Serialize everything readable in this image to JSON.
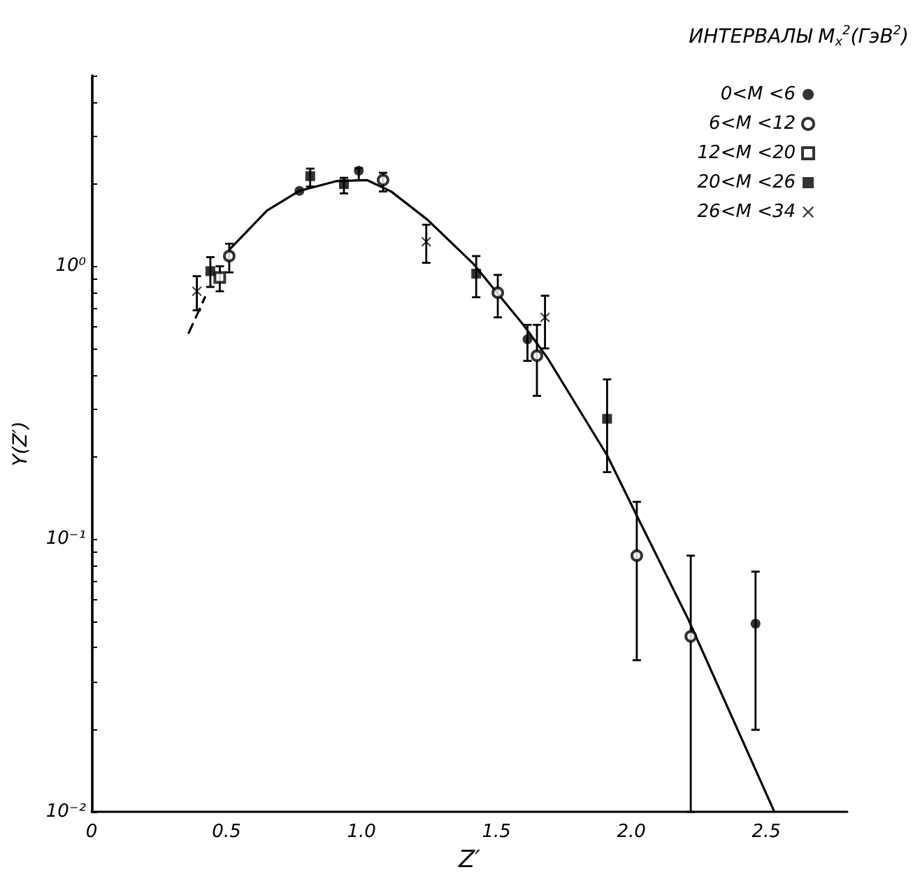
{
  "chart_data": {
    "type": "scatter",
    "legend_title": "ИНТЕРВАЛЫ M$_{x}$$^{2}$(ГэВ$^{2}$)",
    "xlabel": "Z′",
    "ylabel": "Y(Z′)",
    "log": "y",
    "xlim": [
      0,
      2.8
    ],
    "ylim": [
      0.01,
      5
    ],
    "xticks": [
      0,
      0.5,
      {
        "value": 1,
        "label": "1.0"
      },
      1.5,
      {
        "value": 2,
        "label": "2.0"
      },
      2.5
    ],
    "yticks": [
      {
        "value": 0.01,
        "label": "10⁻²"
      },
      {
        "value": 0.02,
        "label": null
      },
      {
        "value": 0.03,
        "label": null
      },
      {
        "value": 0.04,
        "label": null
      },
      {
        "value": 0.05,
        "label": null
      },
      {
        "value": 0.06,
        "label": null
      },
      {
        "value": 0.07,
        "label": null
      },
      {
        "value": 0.08,
        "label": null
      },
      {
        "value": 0.09,
        "label": null
      },
      {
        "value": 0.1,
        "label": "10⁻¹"
      },
      {
        "value": 0.2,
        "label": null
      },
      {
        "value": 0.3,
        "label": null
      },
      {
        "value": 0.4,
        "label": null
      },
      {
        "value": 0.5,
        "label": null
      },
      {
        "value": 0.6,
        "label": null
      },
      {
        "value": 0.7,
        "label": null
      },
      {
        "value": 0.8,
        "label": null
      },
      {
        "value": 0.9,
        "label": null
      },
      {
        "value": 1,
        "label": "10⁰"
      },
      {
        "value": 2,
        "label": null
      },
      {
        "value": 3,
        "label": null
      },
      {
        "value": 4,
        "label": null
      },
      {
        "value": 5,
        "label": null
      }
    ],
    "legend": "top right",
    "grid": false,
    "series": [
      {
        "name": "0<M <6",
        "marker": "circle",
        "color": "#000000",
        "x": [
          0.77,
          0.99,
          1.615,
          2.46
        ],
        "values": [
          1.89,
          2.24,
          0.54,
          0.049
        ],
        "errors": [
          null,
          [
            2.07,
            2.29
          ],
          [
            0.45,
            0.61
          ],
          [
            0.02,
            0.076
          ]
        ]
      },
      {
        "name": "6<M <12",
        "marker": "circle-open",
        "color": "#000000",
        "x": [
          0.51,
          1.08,
          1.505,
          1.65,
          2.02,
          2.22
        ],
        "values": [
          1.09,
          2.07,
          0.8,
          0.47,
          0.087,
          0.044
        ],
        "errors": [
          [
            0.95,
            1.21
          ],
          [
            1.88,
            2.2
          ],
          [
            0.65,
            0.93
          ],
          [
            0.335,
            0.61
          ],
          [
            0.036,
            0.137
          ],
          [
            0.01,
            0.087
          ]
        ]
      },
      {
        "name": "12<M <20",
        "marker": "square-open",
        "color": "#000000",
        "x": [
          0.475
        ],
        "values": [
          0.91
        ],
        "errors": [
          [
            0.81,
            1.0
          ]
        ]
      },
      {
        "name": "20<M <26",
        "marker": "square",
        "color": "#000000",
        "x": [
          0.44,
          0.81,
          0.935,
          1.425,
          1.91
        ],
        "values": [
          0.96,
          2.14,
          2.0,
          0.94,
          0.276
        ],
        "errors": [
          [
            0.84,
            1.08
          ],
          [
            1.96,
            2.28
          ],
          [
            1.85,
            2.11
          ],
          [
            0.77,
            1.09
          ],
          [
            0.176,
            0.385
          ]
        ]
      },
      {
        "name": "26<M <34",
        "marker": "cross",
        "color": "#000000",
        "x": [
          0.39,
          1.24,
          1.68
        ],
        "values": [
          0.81,
          1.23,
          0.65
        ],
        "errors": [
          [
            0.69,
            0.92
          ],
          [
            1.03,
            1.42
          ],
          [
            0.5,
            0.78
          ]
        ]
      },
      {
        "type": "line",
        "marker": "none",
        "line_style": "solid",
        "color": "#000000",
        "x": [
          0.51,
          0.65,
          0.77,
          0.905,
          1.02,
          1.11,
          1.245,
          1.415,
          1.6,
          1.69,
          1.91,
          2.02,
          2.21,
          2.53
        ],
        "values": [
          1.15,
          1.6,
          1.89,
          2.05,
          2.07,
          1.88,
          1.48,
          1.02,
          0.61,
          0.46,
          0.203,
          0.122,
          0.051,
          0.01
        ]
      },
      {
        "type": "line",
        "marker": "none",
        "line_style": "dashed",
        "color": "#000000",
        "x": [
          0.36,
          0.42
        ],
        "values": [
          0.57,
          0.77
        ]
      }
    ]
  }
}
